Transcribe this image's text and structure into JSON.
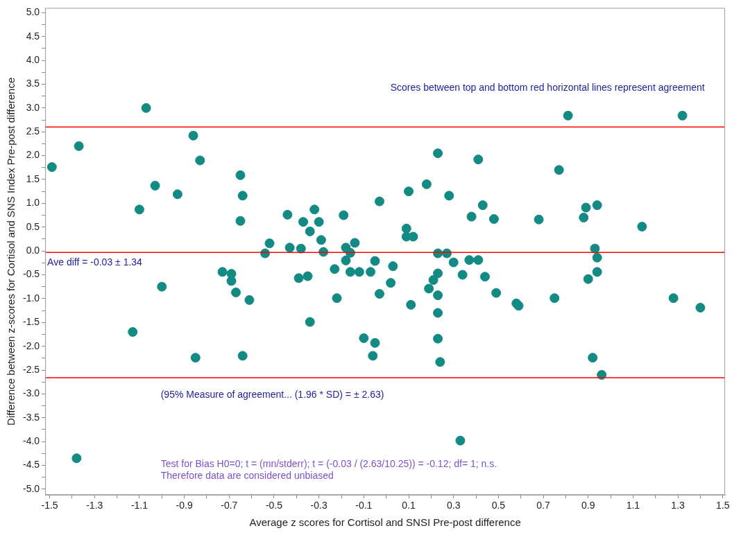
{
  "chart_data": {
    "type": "scatter",
    "xlabel": "Average z scores for Cortisol and SNSI Pre-post difference",
    "ylabel": "Difference between z-scores for Cortisol and SNS Index Pre-post difference",
    "xlim": [
      -1.52,
      1.51
    ],
    "ylim": [
      -5.12,
      5.1
    ],
    "xticks": [
      -1.5,
      {
        "value": -1.4,
        "label": null
      },
      -1.3,
      {
        "value": -1.2,
        "label": null
      },
      -1.1,
      {
        "value": -1.0,
        "label": null
      },
      -0.9,
      {
        "value": -0.8,
        "label": null
      },
      -0.7,
      {
        "value": -0.6,
        "label": null
      },
      -0.5,
      {
        "value": -0.4,
        "label": null
      },
      -0.3,
      {
        "value": -0.2,
        "label": null
      },
      -0.1,
      {
        "value": 0,
        "label": null
      },
      0.1,
      {
        "value": 0.2,
        "label": null
      },
      0.3,
      {
        "value": 0.4,
        "label": null
      },
      0.5,
      {
        "value": 0.6,
        "label": null
      },
      0.7,
      {
        "value": 0.8,
        "label": null
      },
      0.9,
      {
        "value": 1.0,
        "label": null
      },
      1.1,
      {
        "value": 1.2,
        "label": null
      },
      1.3,
      {
        "value": 1.4,
        "label": null
      },
      1.5
    ],
    "yticks": [
      {
        "value": 5,
        "label": "5.0"
      },
      {
        "value": 4.75,
        "label": null
      },
      4.5,
      {
        "value": 4.25,
        "label": null
      },
      {
        "value": 4,
        "label": "4.0"
      },
      {
        "value": 3.75,
        "label": null
      },
      3.5,
      {
        "value": 3.25,
        "label": null
      },
      {
        "value": 3,
        "label": "3.0"
      },
      {
        "value": 2.75,
        "label": null
      },
      2.5,
      {
        "value": 2.25,
        "label": null
      },
      {
        "value": 2,
        "label": "2.0"
      },
      {
        "value": 1.75,
        "label": null
      },
      1.5,
      {
        "value": 1.25,
        "label": null
      },
      {
        "value": 1,
        "label": "1.0"
      },
      {
        "value": 0.75,
        "label": null
      },
      0.5,
      {
        "value": 0.25,
        "label": null
      },
      {
        "value": 0,
        "label": "0.0"
      },
      {
        "value": -0.25,
        "label": null
      },
      -0.5,
      {
        "value": -0.75,
        "label": null
      },
      {
        "value": -1,
        "label": "-1.0"
      },
      {
        "value": -1.25,
        "label": null
      },
      -1.5,
      {
        "value": -1.75,
        "label": null
      },
      {
        "value": -2,
        "label": "-2.0"
      },
      {
        "value": -2.25,
        "label": null
      },
      -2.5,
      {
        "value": -2.75,
        "label": null
      },
      {
        "value": -3,
        "label": "-3.0"
      },
      {
        "value": -3.25,
        "label": null
      },
      -3.5,
      {
        "value": -3.75,
        "label": null
      },
      {
        "value": -4,
        "label": "-4.0"
      },
      {
        "value": -4.25,
        "label": null
      },
      -4.5,
      {
        "value": -4.75,
        "label": null
      },
      {
        "value": -5,
        "label": "-5.0"
      }
    ],
    "grid": false,
    "legend": false,
    "marker": "circle",
    "series": [
      {
        "color": "#138a84",
        "x": [
          -1.49,
          -1.37,
          -1.07,
          -1.03,
          -1.1,
          -0.93,
          -0.86,
          -0.83,
          -0.65,
          -0.64,
          -0.65,
          -1.0,
          -1.13,
          -1.38,
          -0.85,
          -0.64,
          -0.73,
          -0.69,
          -0.69,
          -0.67,
          -0.61,
          -0.54,
          -0.52,
          -0.44,
          -0.43,
          -0.39,
          -0.38,
          -0.37,
          -0.35,
          -0.34,
          -0.34,
          -0.32,
          -0.3,
          -0.29,
          -0.28,
          -0.23,
          -0.22,
          -0.19,
          -0.18,
          -0.18,
          -0.16,
          -0.16,
          -0.14,
          -0.12,
          -0.1,
          -0.07,
          -0.06,
          -0.05,
          -0.05,
          -0.03,
          -0.03,
          0.02,
          0.03,
          0.09,
          0.09,
          0.1,
          0.11,
          0.12,
          0.18,
          0.19,
          0.21,
          0.23,
          0.23,
          0.23,
          0.23,
          0.23,
          0.23,
          0.24,
          0.27,
          0.28,
          0.3,
          0.33,
          0.34,
          0.37,
          0.38,
          0.41,
          0.41,
          0.43,
          0.44,
          0.48,
          0.49,
          0.58,
          0.59,
          0.68,
          0.75,
          0.77,
          0.81,
          0.88,
          0.89,
          0.9,
          0.92,
          0.93,
          0.94,
          0.94,
          0.94,
          0.96,
          1.14,
          1.28,
          1.32,
          1.4
        ],
        "values": [
          1.76,
          2.2,
          3.0,
          1.37,
          0.87,
          1.19,
          2.42,
          1.9,
          1.59,
          1.16,
          0.63,
          -0.75,
          -1.7,
          -4.35,
          -2.24,
          -2.2,
          -0.44,
          -0.48,
          -0.63,
          -0.87,
          -1.03,
          -0.05,
          0.16,
          0.76,
          0.07,
          -0.57,
          0.05,
          0.61,
          -0.53,
          0.41,
          -1.49,
          0.87,
          0.61,
          0.23,
          -0.02,
          -0.38,
          -0.99,
          0.75,
          0.07,
          -0.2,
          -0.04,
          -0.44,
          0.17,
          -0.44,
          -1.83,
          -0.44,
          -2.2,
          -1.93,
          -0.21,
          -0.9,
          1.04,
          -0.67,
          -0.32,
          0.47,
          0.3,
          1.25,
          -1.13,
          0.3,
          1.4,
          -0.79,
          -0.61,
          2.05,
          -0.05,
          -0.47,
          -0.93,
          -1.3,
          -1.84,
          -2.33,
          -0.05,
          1.16,
          -0.24,
          -3.98,
          -0.5,
          -0.19,
          0.72,
          1.92,
          -0.19,
          0.96,
          -0.54,
          0.67,
          -0.88,
          -1.1,
          -1.15,
          0.66,
          -0.99,
          1.7,
          2.84,
          0.7,
          0.91,
          -0.59,
          -2.24,
          0.05,
          0.96,
          -0.14,
          -0.44,
          -2.6,
          0.51,
          -0.99,
          2.84,
          -1.19
        ]
      }
    ],
    "ref_lines": [
      {
        "axis": "y",
        "value": 2.6,
        "color": "#ff0000"
      },
      {
        "axis": "y",
        "value": -0.03,
        "color": "#ff0000",
        "label": "Ave diff = -0.03 ± 1.34"
      },
      {
        "axis": "y",
        "value": -2.66,
        "color": "#ff0000"
      }
    ],
    "annotations": [
      "Scores between top and bottom red horizontal lines represent agreement",
      "(95% Measure of agreement... (1.96 * SD) = ± 2.63)",
      "Test for Bias H0=0; t = (mn/stderr); t = (-0.03 / (2.63/10.25)) = -0.12; df= 1; n.s.",
      "Therefore data are considered unbiased"
    ]
  }
}
